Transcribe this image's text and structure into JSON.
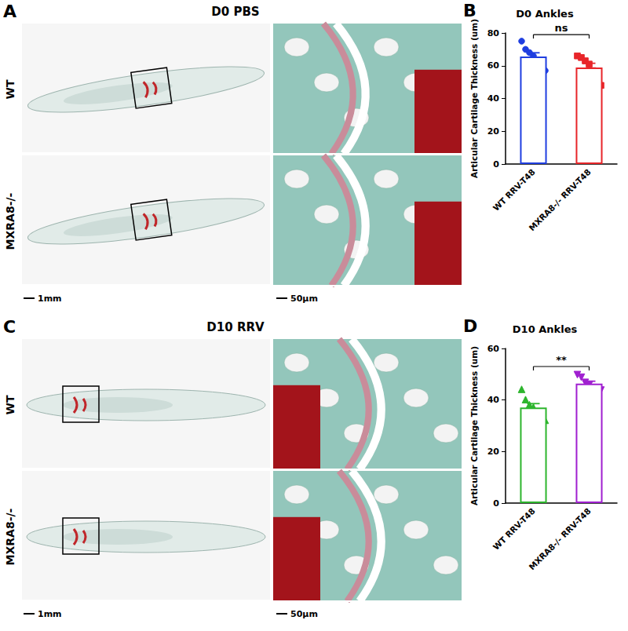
{
  "panels": [
    {
      "label": "A",
      "title": "D0 PBS",
      "rows": [
        "WT",
        "MXRA8-/-"
      ],
      "scale_bars": [
        "1mm",
        "50μm"
      ]
    },
    {
      "label": "C",
      "title": "D10 RRV",
      "rows": [
        "WT",
        "MXRA8-/-"
      ],
      "scale_bars": [
        "1mm",
        "50μm"
      ]
    }
  ],
  "chart_data": [
    {
      "panel": "B",
      "type": "bar",
      "title": "D0 Ankles",
      "y_label": "Articular Cartilage Thickness (um)",
      "categories": [
        "WT RRV-T48",
        "MXRA8-/- RRV-T48"
      ],
      "values": [
        65.6,
        58.9
      ],
      "errors": [
        2.3,
        2.6
      ],
      "points": [
        [
          75,
          70,
          68,
          66,
          62,
          61,
          57
        ],
        [
          66,
          65,
          63,
          61,
          57,
          52,
          48
        ]
      ],
      "colors": [
        "#1f3ee0",
        "#e8262a"
      ],
      "marker": [
        "circle",
        "square"
      ],
      "ylim": [
        0,
        80
      ],
      "yticks": [
        0,
        20,
        40,
        60,
        80
      ],
      "annotations": [
        "ns"
      ],
      "grid": false
    },
    {
      "panel": "D",
      "type": "bar",
      "title": "D10 Ankles",
      "y_label": "Articular Cartilage Thickness (um)",
      "categories": [
        "WT RRV-T48",
        "MXRA8-/- RRV-T48"
      ],
      "values": [
        37.1,
        46.4
      ],
      "errors": [
        1.5,
        0.9
      ],
      "points": [
        [
          44,
          40,
          38,
          37,
          35,
          34,
          32
        ],
        [
          50,
          49,
          47,
          46,
          45,
          44,
          44
        ]
      ],
      "colors": [
        "#2db52d",
        "#a020d0"
      ],
      "marker": [
        "triangle",
        "triangle-down"
      ],
      "ylim": [
        0,
        60
      ],
      "yticks": [
        0,
        20,
        40,
        60
      ],
      "annotations": [
        "**"
      ],
      "grid": false
    }
  ]
}
